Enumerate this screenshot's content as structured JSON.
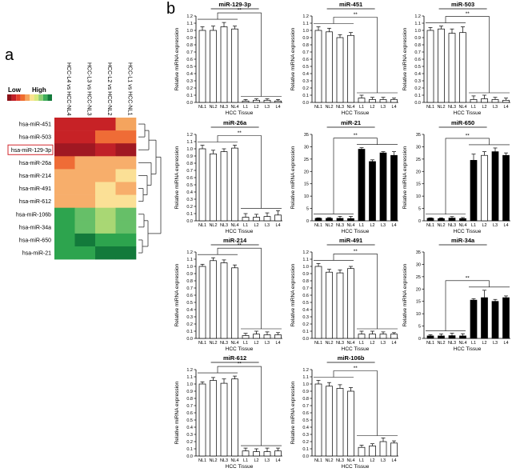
{
  "panel_labels": {
    "a": "a",
    "b": "b"
  },
  "heatmap": {
    "legend": {
      "low": "Low",
      "high": "High",
      "colors": [
        "#8b1218",
        "#c31f27",
        "#e2412b",
        "#ef6c2e",
        "#f5a45c",
        "#fbe28f",
        "#d8e97c",
        "#8fcf73",
        "#3fae5a",
        "#137a3b"
      ]
    },
    "columns": [
      "HCC-L4 vs HCC-NL4",
      "HCC-L3 vs HCC-NL3",
      "HCC-L2 vs HCC-NL2",
      "HCC-L1 vs HCC-NL1"
    ],
    "rows": [
      "hsa-miR-451",
      "hsa-miR-503",
      "hsa-miR-129-3p",
      "hsa-miR-26a",
      "hsa-miR-214",
      "hsa-miR-491",
      "hsa-miR-612",
      "hsa-miR-106b",
      "hsa-miR-34a",
      "hsa-miR-650",
      "hsa-miR-21"
    ],
    "highlighted_row": "hsa-miR-129-3p",
    "cells": [
      [
        "#c72226",
        "#c72226",
        "#c72226",
        "#f4a45e"
      ],
      [
        "#c72226",
        "#c72226",
        "#ef6c36",
        "#ef6c36"
      ],
      [
        "#a01822",
        "#a01822",
        "#c02028",
        "#a01822"
      ],
      [
        "#ef6c36",
        "#f7ae6b",
        "#f7ae6b",
        "#f7ae6b"
      ],
      [
        "#f7ae6b",
        "#f7ae6b",
        "#f7ae6b",
        "#fbe096"
      ],
      [
        "#f7ae6b",
        "#f7ae6b",
        "#fbe096",
        "#f7ae6b"
      ],
      [
        "#f7ae6b",
        "#f7ae6b",
        "#fbe096",
        "#fbe096"
      ],
      [
        "#2da44e",
        "#66bf68",
        "#a9d774",
        "#66bf68"
      ],
      [
        "#2da44e",
        "#66bf68",
        "#a9d774",
        "#66bf68"
      ],
      [
        "#2da44e",
        "#137a3b",
        "#2da44e",
        "#2da44e"
      ],
      [
        "#2da44e",
        "#2da44e",
        "#137a3b",
        "#137a3b"
      ]
    ]
  },
  "chart_data": [
    {
      "type": "bar",
      "title": "miR-129-3p",
      "categories": [
        "NL1",
        "NL2",
        "NL3",
        "NL4",
        "L1",
        "L2",
        "L3",
        "L4"
      ],
      "values": [
        1.0,
        1.0,
        1.05,
        1.02,
        0.02,
        0.03,
        0.03,
        0.02
      ],
      "errors": [
        0.05,
        0.06,
        0.06,
        0.04,
        0.02,
        0.02,
        0.02,
        0.02
      ],
      "fill": [
        "white",
        "white",
        "white",
        "white",
        "white",
        "white",
        "white",
        "white"
      ],
      "yticks": [
        "0.0",
        "0.1",
        "0.2",
        "0.3",
        "0.4",
        "0.5",
        "0.6",
        "0.7",
        "0.8",
        "0.9",
        "1.0",
        "1.1",
        "1.2"
      ],
      "ylim": [
        0,
        1.2
      ],
      "ylabel": "Relative miRNA expression",
      "xlabel": "HCC Tissue",
      "significance": "**"
    },
    {
      "type": "bar",
      "title": "miR-451",
      "categories": [
        "NL1",
        "NL2",
        "NL3",
        "NL4",
        "L1",
        "L2",
        "L3",
        "L4"
      ],
      "values": [
        1.0,
        0.98,
        0.9,
        0.93,
        0.06,
        0.04,
        0.04,
        0.04
      ],
      "errors": [
        0.05,
        0.05,
        0.04,
        0.04,
        0.04,
        0.03,
        0.03,
        0.02
      ],
      "fill": [
        "white",
        "white",
        "white",
        "white",
        "white",
        "white",
        "white",
        "white"
      ],
      "yticks": [
        "0.0",
        "0.1",
        "0.2",
        "0.3",
        "0.4",
        "0.5",
        "0.6",
        "0.7",
        "0.8",
        "0.9",
        "1.0",
        "1.1",
        "1.2"
      ],
      "ylim": [
        0,
        1.2
      ],
      "ylabel": "Relative miRNA expression",
      "xlabel": "HCC Tissue",
      "significance": "**"
    },
    {
      "type": "bar",
      "title": "miR-503",
      "categories": [
        "NL1",
        "NL2",
        "NL3",
        "NL4",
        "L1",
        "L2",
        "L3",
        "L4"
      ],
      "values": [
        1.0,
        1.02,
        0.96,
        0.97,
        0.04,
        0.05,
        0.04,
        0.03
      ],
      "errors": [
        0.04,
        0.04,
        0.06,
        0.08,
        0.05,
        0.05,
        0.03,
        0.03
      ],
      "fill": [
        "white",
        "white",
        "white",
        "white",
        "white",
        "white",
        "white",
        "white"
      ],
      "yticks": [
        "0.0",
        "0.1",
        "0.2",
        "0.3",
        "0.4",
        "0.5",
        "0.6",
        "0.7",
        "0.8",
        "0.9",
        "1.0",
        "1.1",
        "1.2"
      ],
      "ylim": [
        0,
        1.2
      ],
      "ylabel": "Relative miRNA expression",
      "xlabel": "HCC Tissue",
      "significance": "**"
    },
    {
      "type": "bar",
      "title": "miR-26a",
      "categories": [
        "NL1",
        "NL2",
        "NL3",
        "NL4",
        "L1",
        "L2",
        "L3",
        "L4"
      ],
      "values": [
        1.0,
        0.93,
        0.96,
        1.01,
        0.05,
        0.05,
        0.06,
        0.08
      ],
      "errors": [
        0.05,
        0.05,
        0.04,
        0.04,
        0.05,
        0.04,
        0.05,
        0.06
      ],
      "fill": [
        "white",
        "white",
        "white",
        "white",
        "white",
        "white",
        "white",
        "white"
      ],
      "yticks": [
        "0.0",
        "0.1",
        "0.2",
        "0.3",
        "0.4",
        "0.5",
        "0.6",
        "0.7",
        "0.8",
        "0.9",
        "1.0",
        "1.1",
        "1.2"
      ],
      "ylim": [
        0,
        1.2
      ],
      "ylabel": "Relative miRNA expression",
      "xlabel": "HCC Tissue",
      "significance": "**"
    },
    {
      "type": "bar",
      "title": "miR-21",
      "categories": [
        "NL1",
        "NL2",
        "NL3",
        "NL4",
        "L1",
        "L2",
        "L3",
        "L4"
      ],
      "values": [
        1.0,
        1.0,
        1.0,
        0.9,
        29.0,
        24.0,
        27.5,
        26.5
      ],
      "errors": [
        0.2,
        0.3,
        0.8,
        0.9,
        0.6,
        0.7,
        0.5,
        1.5
      ],
      "fill": [
        "black",
        "black",
        "black",
        "black",
        "black",
        "black",
        "black",
        "black"
      ],
      "yticks": [
        "0",
        "5",
        "10",
        "15",
        "20",
        "25",
        "30",
        "35"
      ],
      "ylim": [
        0,
        35
      ],
      "ylabel": "Relative miRNA expression",
      "xlabel": "HCC Tissue",
      "significance": "**"
    },
    {
      "type": "bar",
      "title": "miR-650",
      "categories": [
        "NL1",
        "NL2",
        "NL3",
        "NL4",
        "L1",
        "L2",
        "L3",
        "L4"
      ],
      "values": [
        1.0,
        0.9,
        1.1,
        0.9,
        24.5,
        26.5,
        28.0,
        26.5
      ],
      "errors": [
        0.2,
        0.3,
        0.6,
        0.4,
        2.5,
        1.5,
        1.5,
        1.0
      ],
      "fill": [
        "black",
        "black",
        "black",
        "black",
        "black",
        "white",
        "black",
        "black"
      ],
      "yticks": [
        "0",
        "5",
        "10",
        "15",
        "20",
        "25",
        "30",
        "35"
      ],
      "ylim": [
        0,
        35
      ],
      "ylabel": "Relative miRNA expression",
      "xlabel": "HCC Tissue",
      "significance": "**"
    },
    {
      "type": "bar",
      "title": "miR-214",
      "categories": [
        "NL1",
        "NL2",
        "NL3",
        "NL4",
        "L1",
        "L2",
        "L3",
        "L4"
      ],
      "values": [
        1.0,
        1.08,
        1.05,
        0.98,
        0.04,
        0.06,
        0.05,
        0.05
      ],
      "errors": [
        0.03,
        0.04,
        0.04,
        0.04,
        0.03,
        0.04,
        0.04,
        0.03
      ],
      "fill": [
        "white",
        "white",
        "white",
        "white",
        "white",
        "white",
        "white",
        "white"
      ],
      "yticks": [
        "0.0",
        "0.1",
        "0.2",
        "0.3",
        "0.4",
        "0.5",
        "0.6",
        "0.7",
        "0.8",
        "0.9",
        "1.0",
        "1.1",
        "1.2"
      ],
      "ylim": [
        0,
        1.2
      ],
      "ylabel": "Relative miRNA expression",
      "xlabel": "HCC Tissue",
      "significance": "**"
    },
    {
      "type": "bar",
      "title": "miR-491",
      "categories": [
        "NL1",
        "NL2",
        "NL3",
        "NL4",
        "L1",
        "L2",
        "L3",
        "L4"
      ],
      "values": [
        1.0,
        0.92,
        0.91,
        0.97,
        0.06,
        0.06,
        0.06,
        0.06
      ],
      "errors": [
        0.04,
        0.04,
        0.04,
        0.03,
        0.04,
        0.04,
        0.03,
        0.02
      ],
      "fill": [
        "white",
        "white",
        "white",
        "white",
        "white",
        "white",
        "white",
        "white"
      ],
      "yticks": [
        "0.0",
        "0.1",
        "0.2",
        "0.3",
        "0.4",
        "0.5",
        "0.6",
        "0.7",
        "0.8",
        "0.9",
        "1.0",
        "1.1",
        "1.2"
      ],
      "ylim": [
        0,
        1.2
      ],
      "ylabel": "Relative miRNA expression",
      "xlabel": "HCC Tissue",
      "significance": "**"
    },
    {
      "type": "bar",
      "title": "miR-34a",
      "categories": [
        "NL1",
        "NL2",
        "NL3",
        "NL4",
        "L1",
        "L2",
        "L3",
        "L4"
      ],
      "values": [
        1.0,
        1.0,
        1.1,
        1.0,
        15.5,
        16.5,
        15.0,
        16.5
      ],
      "errors": [
        0.5,
        0.8,
        1.0,
        0.9,
        0.6,
        3.0,
        0.8,
        0.7
      ],
      "fill": [
        "black",
        "black",
        "black",
        "black",
        "black",
        "black",
        "black",
        "black"
      ],
      "yticks": [
        "0",
        "5",
        "10",
        "15",
        "20",
        "25",
        "30",
        "35"
      ],
      "ylim": [
        0,
        35
      ],
      "ylabel": "Relative miRNA expression",
      "xlabel": "HCC Tissue",
      "significance": "**"
    },
    {
      "type": "bar",
      "title": "miR-612",
      "categories": [
        "NL1",
        "NL2",
        "NL3",
        "NL4",
        "L1",
        "L2",
        "L3",
        "L4"
      ],
      "values": [
        1.0,
        1.05,
        1.01,
        1.07,
        0.07,
        0.06,
        0.06,
        0.07
      ],
      "errors": [
        0.03,
        0.04,
        0.06,
        0.04,
        0.04,
        0.04,
        0.05,
        0.04
      ],
      "fill": [
        "white",
        "white",
        "white",
        "white",
        "white",
        "white",
        "white",
        "white"
      ],
      "yticks": [
        "0.0",
        "0.1",
        "0.2",
        "0.3",
        "0.4",
        "0.5",
        "0.6",
        "0.7",
        "0.8",
        "0.9",
        "1.0",
        "1.1",
        "1.2"
      ],
      "ylim": [
        0,
        1.2
      ],
      "ylabel": "Relative miRNA expression",
      "xlabel": "HCC Tissue",
      "significance": "**"
    },
    {
      "type": "bar",
      "title": "miR-106b",
      "categories": [
        "NL1",
        "NL2",
        "NL3",
        "NL4",
        "L1",
        "L2",
        "L3",
        "L4"
      ],
      "values": [
        1.0,
        0.97,
        0.94,
        0.9,
        0.12,
        0.14,
        0.2,
        0.18
      ],
      "errors": [
        0.05,
        0.05,
        0.05,
        0.05,
        0.03,
        0.03,
        0.05,
        0.03
      ],
      "fill": [
        "white",
        "white",
        "white",
        "white",
        "white",
        "white",
        "white",
        "white"
      ],
      "yticks": [
        "0.0",
        "0.1",
        "0.2",
        "0.3",
        "0.4",
        "0.5",
        "0.6",
        "0.7",
        "0.8",
        "0.9",
        "1.0",
        "1.1",
        "1.2"
      ],
      "ylim": [
        0,
        1.2
      ],
      "ylabel": "Relative miRNA expression",
      "xlabel": "HCC Tissue",
      "significance": "**"
    }
  ]
}
